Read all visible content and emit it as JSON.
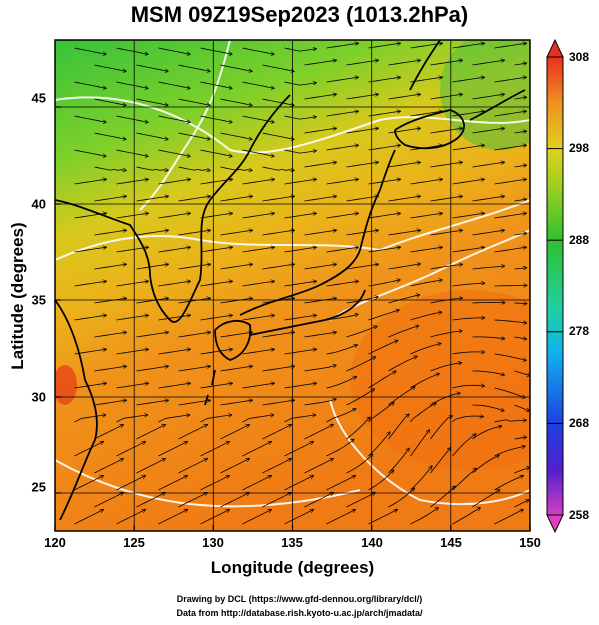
{
  "title": "MSM 09Z19Sep2023 (1013.2hPa)",
  "x_axis": {
    "label": "Longitude (degrees)",
    "ticks": [
      "120",
      "125",
      "130",
      "135",
      "140",
      "145",
      "150"
    ]
  },
  "y_axis": {
    "label": "Latitude  (degrees)",
    "ticks": [
      "25",
      "30",
      "35",
      "40",
      "45"
    ]
  },
  "colorbar": {
    "ticks": [
      "308",
      "298",
      "288",
      "278",
      "268",
      "258"
    ],
    "min": 258,
    "max": 308
  },
  "credits": {
    "line1": "Drawing by DCL (https://www.gfd-dennou.org/library/dcl/)",
    "line2": "Data from http://database.rish.kyoto-u.ac.jp/arch/jmadata/"
  },
  "colors": {
    "warm": "#f07a10",
    "mid": "#e8c21a",
    "cool": "#3fc238",
    "land": "#000000"
  }
}
